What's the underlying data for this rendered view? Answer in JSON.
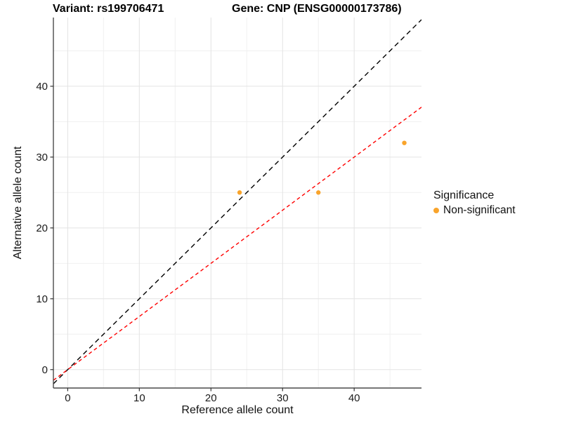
{
  "chart_data": {
    "type": "scatter",
    "titles": {
      "left": "Variant: rs199706471",
      "right": "Gene: CNP (ENSG00000173786)"
    },
    "xlabel": "Reference allele count",
    "ylabel": "Alternative allele count",
    "xlim": [
      -2.0,
      49.4
    ],
    "ylim": [
      -2.6,
      49.7
    ],
    "x_major_ticks": [
      0,
      10,
      20,
      30,
      40
    ],
    "y_major_ticks": [
      0,
      10,
      20,
      30,
      40
    ],
    "x_minor_ticks": [
      5,
      15,
      25,
      35,
      45
    ],
    "y_minor_ticks": [
      5,
      15,
      25,
      35,
      45
    ],
    "series": [
      {
        "name": "Non-significant",
        "color": "#F9A42B",
        "points": [
          {
            "x": 24,
            "y": 25
          },
          {
            "x": 35,
            "y": 25
          },
          {
            "x": 47,
            "y": 32
          }
        ]
      }
    ],
    "lines": [
      {
        "name": "identity-line",
        "slope": 1.0,
        "intercept": 0,
        "color": "#000000",
        "dash": "7,5"
      },
      {
        "name": "fit-line",
        "slope": 0.75,
        "intercept": 0,
        "color": "#FF0000",
        "dash": "5,4"
      }
    ],
    "legend": {
      "title": "Significance",
      "items": [
        {
          "label": "Non-significant",
          "color": "#F9A42B"
        }
      ]
    },
    "grid": {
      "major_color": "#E3E3E3",
      "minor_color": "#F0F0F0"
    },
    "axis_color": "#4a4a4a",
    "tick_label_color": "#1a1a1a"
  }
}
